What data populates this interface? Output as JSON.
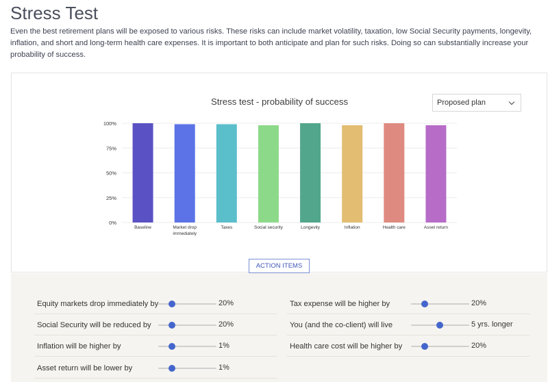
{
  "page": {
    "title": "Stress Test",
    "intro": "Even the best retirement plans will be exposed to various risks. These risks can include market volatility, taxation, low Social Security payments, longevity, inflation, and short and long-term health care expenses. It is important to both anticipate and plan for such risks. Doing so can substantially increase your probability of success."
  },
  "plan_select": {
    "value": "Proposed plan"
  },
  "action_button": {
    "label": "ACTION ITEMS"
  },
  "chart_data": {
    "type": "bar",
    "title": "Stress test - probability of success",
    "categories": [
      "Baseline",
      "Market drop immediately",
      "Taxes",
      "Social security",
      "Longevity",
      "Inflation",
      "Health care",
      "Asset return"
    ],
    "category_lines": [
      [
        "Baseline"
      ],
      [
        "Market drop",
        "immediately"
      ],
      [
        "Taxes"
      ],
      [
        "Social security"
      ],
      [
        "Longevity"
      ],
      [
        "Inflation"
      ],
      [
        "Health care"
      ],
      [
        "Asset return"
      ]
    ],
    "values": [
      100,
      99,
      99,
      98,
      100,
      98,
      100,
      98
    ],
    "colors": [
      "#5a52c4",
      "#5b73e6",
      "#5bbecb",
      "#8dd98a",
      "#52a68b",
      "#e2bd72",
      "#df8a80",
      "#b76cc8"
    ],
    "y_ticks": [
      "0%",
      "25%",
      "50%",
      "75%",
      "100%"
    ],
    "ylim": [
      0,
      100
    ],
    "grid": true
  },
  "controls": {
    "left": [
      {
        "label": "Equity markets drop immediately by",
        "value": "20%",
        "level": 0.23
      },
      {
        "label": "Social Security will be reduced by",
        "value": "20%",
        "level": 0.23
      },
      {
        "label": "Inflation will be higher by",
        "value": "1%",
        "level": 0.23
      },
      {
        "label": "Asset return will be lower by",
        "value": "1%",
        "level": 0.23
      }
    ],
    "right": [
      {
        "label": "Tax expense will be higher by",
        "value": "20%",
        "level": 0.23
      },
      {
        "label": "You (and the co-client) will live",
        "value": "5 yrs. longer",
        "level": 0.49
      },
      {
        "label": "Health care cost will be higher by",
        "value": "20%",
        "level": 0.23
      }
    ]
  }
}
